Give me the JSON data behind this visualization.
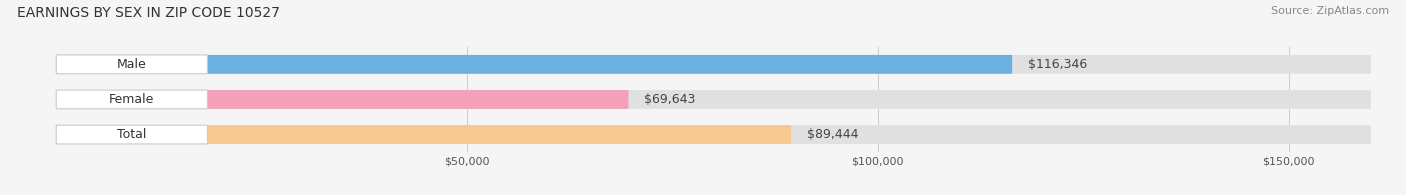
{
  "title": "EARNINGS BY SEX IN ZIP CODE 10527",
  "source": "Source: ZipAtlas.com",
  "categories": [
    "Male",
    "Female",
    "Total"
  ],
  "values": [
    116346,
    69643,
    89444
  ],
  "bar_colors": [
    "#6ab0e0",
    "#f4a0b8",
    "#f5c990"
  ],
  "bar_bg_color": "#e0e0e0",
  "label_bg_color": "#ffffff",
  "bar_height": 0.52,
  "xlim": [
    0,
    160000
  ],
  "xticks": [
    50000,
    100000,
    150000
  ],
  "xtick_labels": [
    "$50,000",
    "$100,000",
    "$150,000"
  ],
  "value_labels": [
    "$116,346",
    "$69,643",
    "$89,444"
  ],
  "title_fontsize": 10,
  "source_fontsize": 8,
  "label_fontsize": 9,
  "value_fontsize": 9,
  "background_color": "#f5f5f5"
}
